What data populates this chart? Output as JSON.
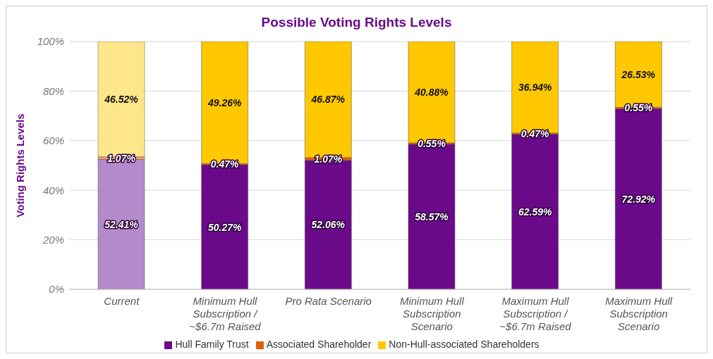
{
  "chart_data": {
    "type": "bar",
    "title": "Possible Voting Rights Levels",
    "ylabel": "Voting Rights Levels",
    "stacked": true,
    "categories": [
      "Current",
      "Minimum Hull Subscription / ~$6.7m Raised",
      "Pro Rata Scenario",
      "Minimum Hull Subscription Scenario",
      "Maximum Hull Subscription / ~$6.7m Raised",
      "Maximum Hull Subscription Scenario"
    ],
    "series": [
      {
        "name": "Hull Family Trust",
        "color": "#6a0a8a",
        "colors": [
          "#b58acb",
          "#6a0a8a",
          "#6a0a8a",
          "#6a0a8a",
          "#6a0a8a",
          "#6a0a8a"
        ],
        "values": [
          52.41,
          50.27,
          52.06,
          58.57,
          62.59,
          72.92
        ],
        "value_labels": [
          "52.41%",
          "50.27%",
          "52.06%",
          "58.57%",
          "62.59%",
          "72.92%"
        ]
      },
      {
        "name": "Associated Shareholder",
        "color": "#e0600a",
        "colors": [
          "#f0a070",
          "#e0600a",
          "#e0600a",
          "#e0600a",
          "#e0600a",
          "#e0600a"
        ],
        "values": [
          1.07,
          0.47,
          1.07,
          0.55,
          0.47,
          0.55
        ],
        "value_labels": [
          "1.07%",
          "0.47%",
          "1.07%",
          "0.55%",
          "0.47%",
          "0.55%"
        ]
      },
      {
        "name": "Non-Hull-associated Shareholders",
        "color": "#ffc800",
        "colors": [
          "#ffe68a",
          "#ffc800",
          "#ffc800",
          "#ffc800",
          "#ffc800",
          "#ffc800"
        ],
        "values": [
          46.52,
          49.26,
          46.87,
          40.88,
          36.94,
          26.53
        ],
        "value_labels": [
          "46.52%",
          "49.26%",
          "46.87%",
          "40.88%",
          "36.94%",
          "26.53%"
        ]
      }
    ],
    "ylim": [
      0,
      100
    ],
    "yticks": [
      {
        "value": 0,
        "label": "0%"
      },
      {
        "value": 20,
        "label": "20%"
      },
      {
        "value": 40,
        "label": "40%"
      },
      {
        "value": 60,
        "label": "60%"
      },
      {
        "value": 80,
        "label": "80%"
      },
      {
        "value": 100,
        "label": "100%"
      }
    ],
    "grid": "y",
    "legend": "bottom"
  }
}
